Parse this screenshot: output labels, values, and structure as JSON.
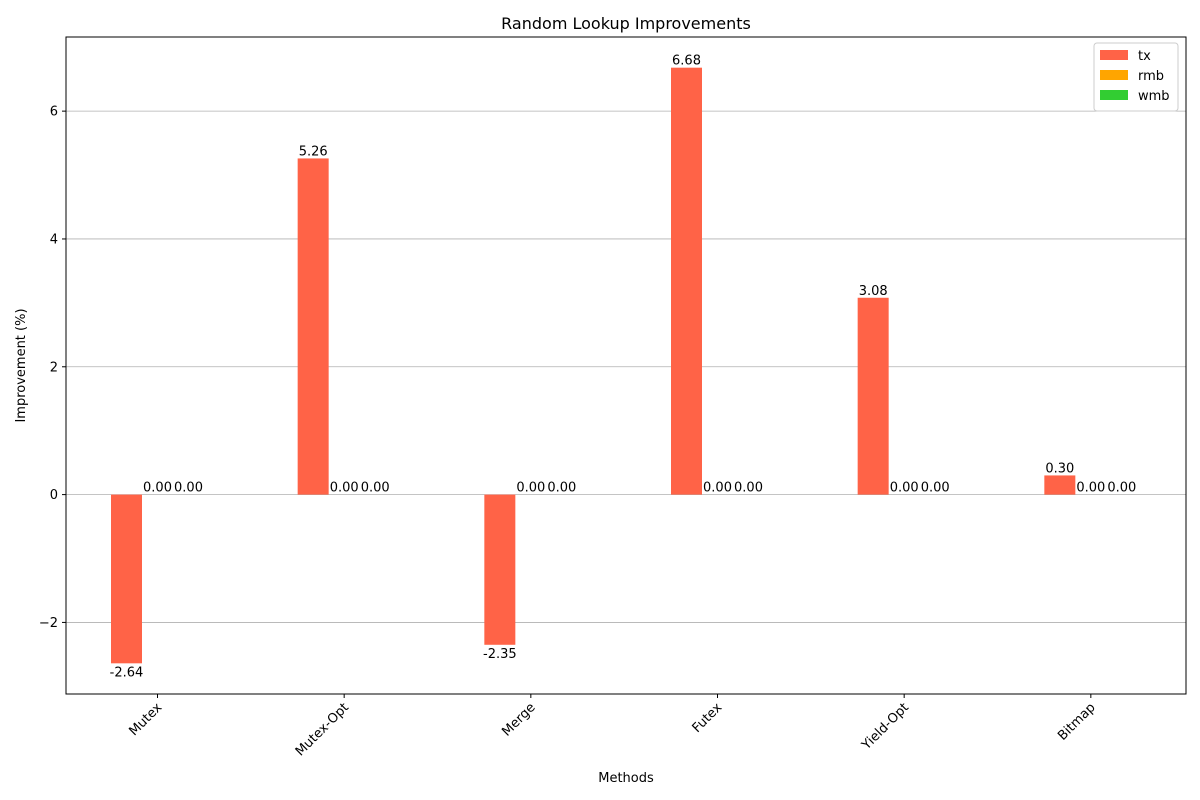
{
  "chart_data": {
    "type": "bar",
    "title": "Random Lookup Improvements",
    "xlabel": "Methods",
    "ylabel": "Improvement (%)",
    "categories": [
      "Mutex",
      "Mutex-Opt",
      "Merge",
      "Futex",
      "Yield-Opt",
      "Bitmap"
    ],
    "series": [
      {
        "name": "tx",
        "color": "#ff6347",
        "values": [
          -2.64,
          5.26,
          -2.35,
          6.68,
          3.08,
          0.3
        ]
      },
      {
        "name": "rmb",
        "color": "#ffa500",
        "values": [
          0.0,
          0.0,
          0.0,
          0.0,
          0.0,
          0.0
        ]
      },
      {
        "name": "wmb",
        "color": "#32cd32",
        "values": [
          0.0,
          0.0,
          0.0,
          0.0,
          0.0,
          0.0
        ]
      }
    ],
    "ylim": [
      -3.12,
      7.16
    ],
    "yticks": [
      -2,
      0,
      2,
      4,
      6
    ],
    "ytick_labels": [
      "−2",
      "0",
      "2",
      "4",
      "6"
    ],
    "grid": "y",
    "legend_position": "top-right",
    "value_label_format": "2 decimals"
  }
}
